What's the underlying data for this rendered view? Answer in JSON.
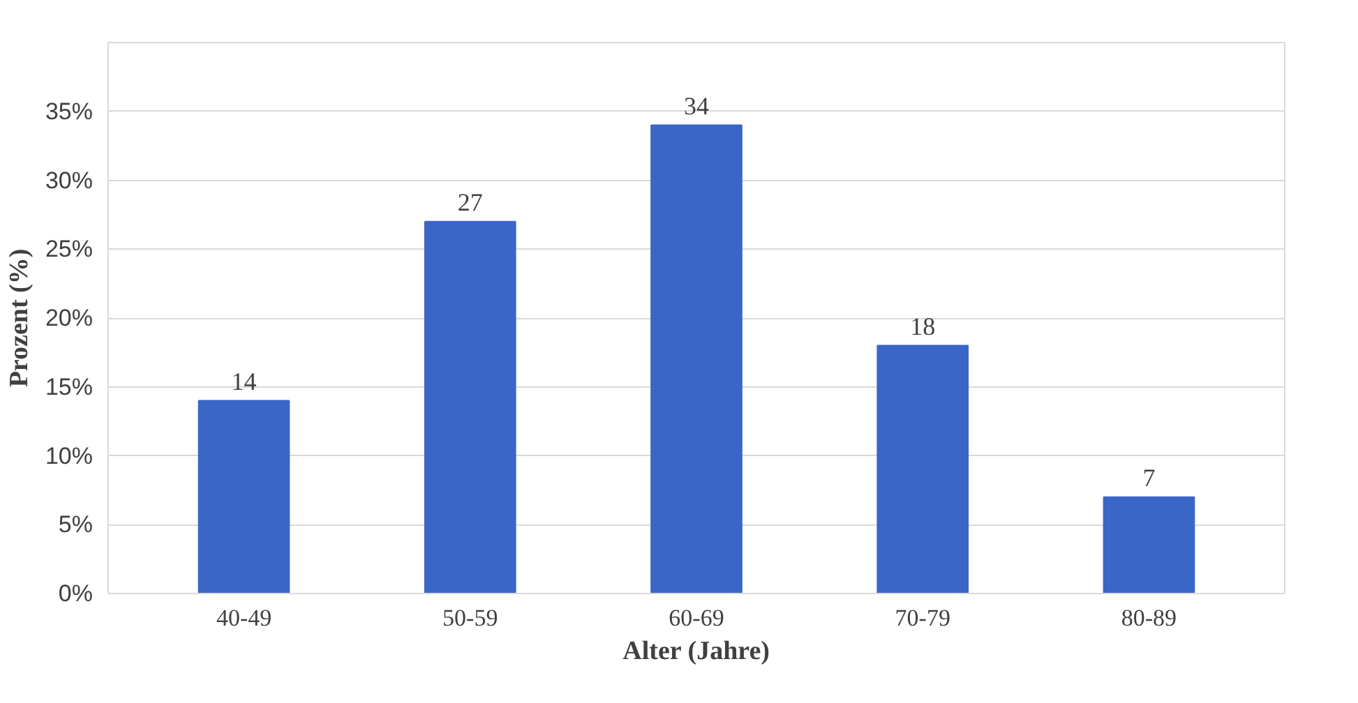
{
  "chart_data": {
    "type": "bar",
    "xlabel": "Alter (Jahre)",
    "ylabel": "Prozent (%)",
    "categories": [
      "40-49",
      "50-59",
      "60-69",
      "70-79",
      "80-89"
    ],
    "values": [
      14,
      27,
      34,
      18,
      7
    ],
    "color": "#3a66c8",
    "ylim": [
      0,
      40
    ],
    "yticks": [
      {
        "value": 0,
        "label": "0%"
      },
      {
        "value": 5,
        "label": "5%"
      },
      {
        "value": 10,
        "label": "10%"
      },
      {
        "value": 15,
        "label": "15%"
      },
      {
        "value": 20,
        "label": "20%"
      },
      {
        "value": 25,
        "label": "25%"
      },
      {
        "value": 30,
        "label": "30%"
      },
      {
        "value": 35,
        "label": "35%"
      },
      {
        "value": 40,
        "label": null
      }
    ],
    "grid": "y",
    "data_labels": true
  }
}
